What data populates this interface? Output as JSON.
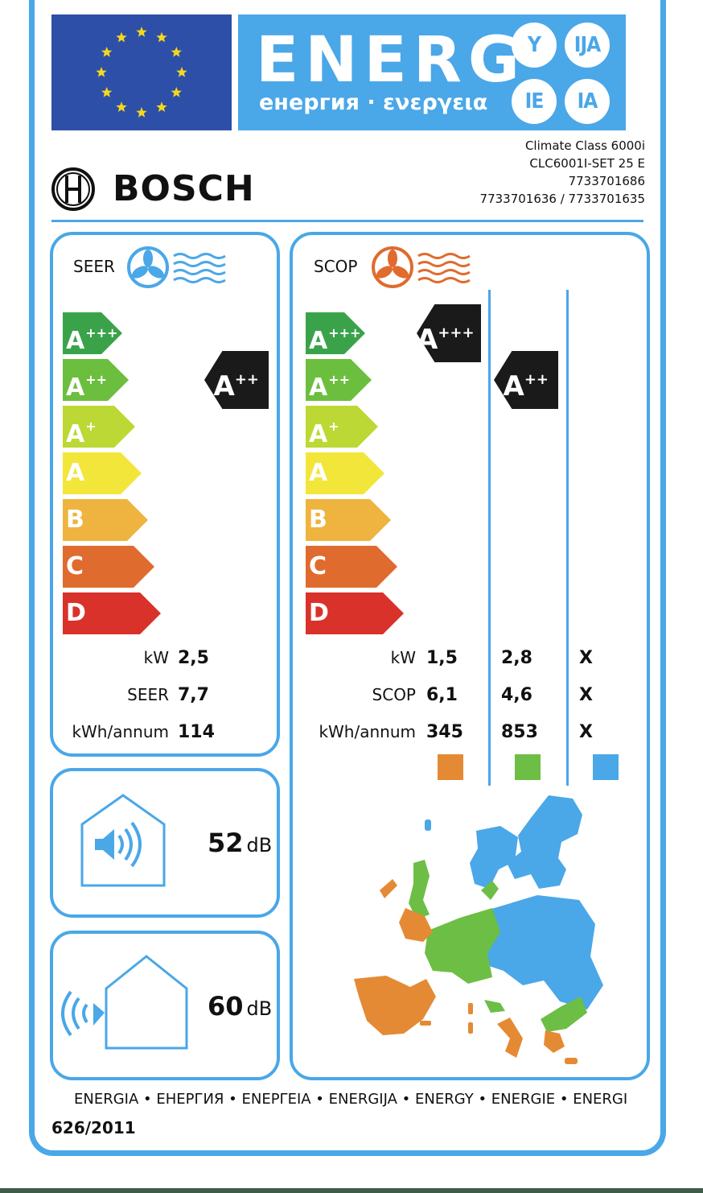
{
  "header": {
    "energy_word": "ENERG",
    "energy_subtitle": "енергия · ενεργεια",
    "suffixes": [
      "Y",
      "IJA",
      "IE",
      "IA"
    ]
  },
  "brand": {
    "name": "BOSCH"
  },
  "model": {
    "lines": [
      "Climate Class 6000i",
      "CLC6001I-SET 25 E",
      "7733701686",
      "7733701636 / 7733701635"
    ]
  },
  "seer_panel": {
    "title": "SEER",
    "scale": [
      {
        "letter": "A",
        "plus": "+++",
        "color": "#3aa34a"
      },
      {
        "letter": "A",
        "plus": "++",
        "color": "#6cbf3e"
      },
      {
        "letter": "A",
        "plus": "+",
        "color": "#bcd834"
      },
      {
        "letter": "A",
        "plus": "",
        "color": "#f2e63a"
      },
      {
        "letter": "B",
        "plus": "",
        "color": "#eeb43f"
      },
      {
        "letter": "C",
        "plus": "",
        "color": "#e06b2e"
      },
      {
        "letter": "D",
        "plus": "",
        "color": "#d9322b"
      }
    ],
    "rating": {
      "letter": "A",
      "plus": "++"
    },
    "rows": [
      {
        "label": "kW",
        "value": "2,5"
      },
      {
        "label": "SEER",
        "value": "7,7"
      },
      {
        "label": "kWh/annum",
        "value": "114"
      }
    ]
  },
  "scop_panel": {
    "title": "SCOP",
    "ratings": [
      {
        "letter": "A",
        "plus": "+++"
      },
      {
        "letter": "A",
        "plus": "++"
      }
    ],
    "rows": [
      {
        "label": "kW",
        "values": [
          "1,5",
          "2,8",
          "X"
        ]
      },
      {
        "label": "SCOP",
        "values": [
          "6,1",
          "4,6",
          "X"
        ]
      },
      {
        "label": "kWh/annum",
        "values": [
          "345",
          "853",
          "X"
        ]
      }
    ],
    "zone_colors": [
      "#e58a34",
      "#6dbe45",
      "#4aa7e8"
    ]
  },
  "noise": {
    "indoor_value": "52",
    "outdoor_value": "60",
    "unit": "dB"
  },
  "footer": {
    "languages": "ENERGIA • ЕНЕРГИЯ • ΕΝΕΡΓΕΙΑ • ENERGIJA • ENERGY • ENERGIE • ENERGI",
    "regulation": "626/2011"
  },
  "colors": {
    "frame": "#4aa7e8",
    "eu_blue": "#2e4fa8",
    "eu_star": "#f4d81c",
    "rating_arrow": "#1a1a1a"
  }
}
